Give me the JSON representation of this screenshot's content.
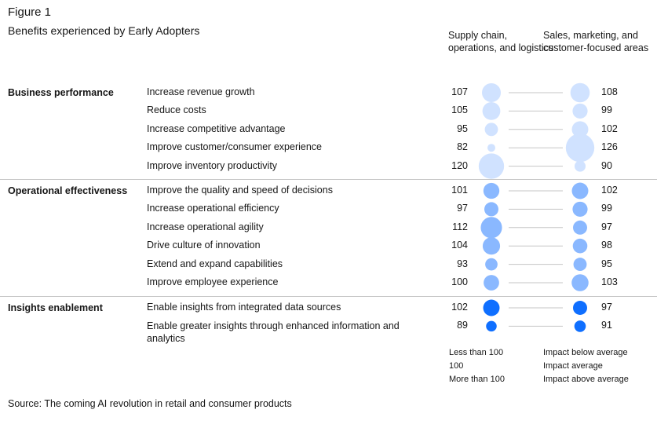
{
  "figure_label": "Figure 1",
  "title": "Benefits experienced by Early Adopters",
  "columns": [
    "Supply chain, operations, and logistics",
    "Sales, marketing, and customer-focused areas"
  ],
  "colors": {
    "below_average": "#d0e2ff",
    "average": "#8ab8ff",
    "above_average": "#0f6fff",
    "separator": "#c6c6c6",
    "connector": "#c6c6c6"
  },
  "chart_data": {
    "type": "bubble-dumbbell",
    "title": "Benefits experienced by Early Adopters",
    "series": [
      {
        "name": "Supply chain, operations, and logistics"
      },
      {
        "name": "Sales, marketing, and customer-focused areas"
      }
    ],
    "groups": [
      {
        "name": "Business performance",
        "level": "below",
        "rows": [
          {
            "label": "Increase revenue growth",
            "left": 107,
            "right": 108
          },
          {
            "label": "Reduce costs",
            "left": 105,
            "right": 99
          },
          {
            "label": "Increase competitive advantage",
            "left": 95,
            "right": 102
          },
          {
            "label": "Improve customer/consumer experience",
            "left": 82,
            "right": 126
          },
          {
            "label": "Improve inventory productivity",
            "left": 120,
            "right": 90
          }
        ]
      },
      {
        "name": "Operational effectiveness",
        "level": "average",
        "rows": [
          {
            "label": "Improve the quality and speed of decisions",
            "left": 101,
            "right": 102
          },
          {
            "label": "Increase operational efficiency",
            "left": 97,
            "right": 99
          },
          {
            "label": "Increase operational agility",
            "left": 112,
            "right": 97
          },
          {
            "label": "Drive culture of innovation",
            "left": 104,
            "right": 98
          },
          {
            "label": "Extend and expand capabilities",
            "left": 93,
            "right": 95
          },
          {
            "label": "Improve employee experience",
            "left": 100,
            "right": 103
          }
        ]
      },
      {
        "name": "Insights enablement",
        "level": "above",
        "rows": [
          {
            "label": "Enable insights from integrated data sources",
            "left": 102,
            "right": 97
          },
          {
            "label": "Enable greater insights through enhanced information and analytics",
            "left": 89,
            "right": 91
          }
        ]
      }
    ]
  },
  "legend": {
    "sizes": [
      "Less than 100",
      "100",
      "More than 100"
    ],
    "impacts": [
      "Impact below average",
      "Impact average",
      "Impact above average"
    ]
  },
  "source": "Source: The coming AI revolution in retail and consumer products"
}
